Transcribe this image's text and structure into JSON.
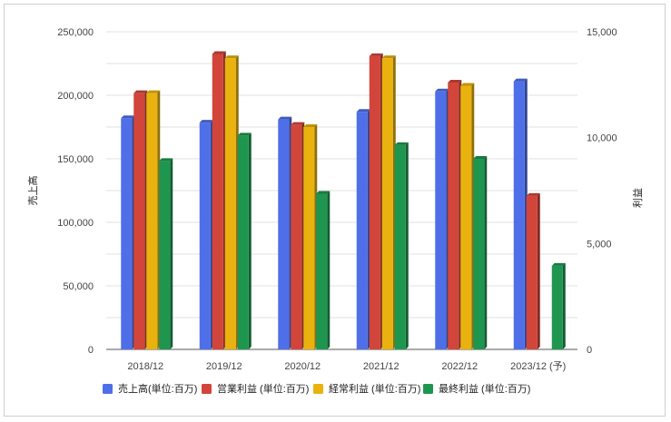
{
  "chart_data": {
    "type": "bar",
    "categories": [
      "2018/12",
      "2019/12",
      "2020/12",
      "2021/12",
      "2022/12",
      "2023/12 (予)"
    ],
    "series": [
      {
        "name": "売上高(単位:百万)",
        "axis": "left",
        "color": "#4f6fe9",
        "values": [
          182000,
          178500,
          181000,
          187000,
          203000,
          211000
        ]
      },
      {
        "name": "営業利益 (単位:百万)",
        "axis": "right",
        "color": "#d2453b",
        "values": [
          12100,
          13950,
          10600,
          13850,
          12600,
          7250
        ]
      },
      {
        "name": "経常利益 (単位:百万)",
        "axis": "right",
        "color": "#e9b20e",
        "values": [
          12100,
          13750,
          10500,
          13750,
          12450,
          null
        ]
      },
      {
        "name": "最終利益 (単位:百万)",
        "axis": "right",
        "color": "#1f9650",
        "values": [
          8900,
          10100,
          7350,
          9650,
          9000,
          3950
        ]
      }
    ],
    "ylabel_left": "売上高",
    "ylabel_right": "利益",
    "ylim_left": [
      0,
      250000
    ],
    "ylim_right": [
      0,
      15000
    ],
    "yticks_left": [
      "0",
      "50,000",
      "100,000",
      "150,000",
      "200,000",
      "250,000"
    ],
    "yticks_right": [
      "0",
      "5,000",
      "10,000",
      "15,000"
    ],
    "grid": true,
    "legend_position": "bottom"
  }
}
